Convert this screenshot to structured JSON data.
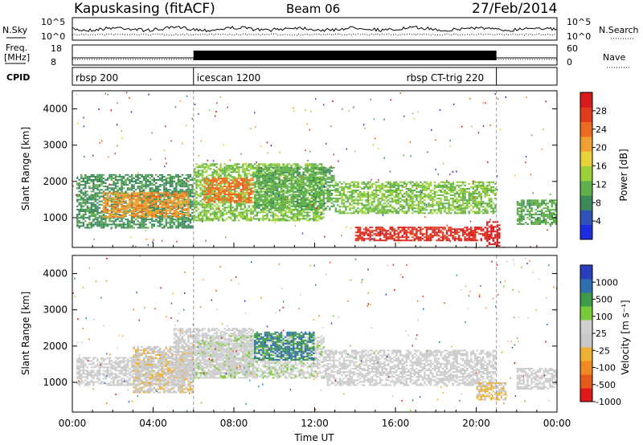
{
  "header": {
    "station": "Kapuskasing (fitACF)",
    "beam": "Beam 06",
    "date": "27/Feb/2014"
  },
  "strips": {
    "nsky_label": "N.Sky",
    "nsky_ticks": [
      "10^5",
      "10^0"
    ],
    "nsearch_label": "N.Search",
    "nsearch_ticks": [
      "10^5",
      "10^0"
    ],
    "freq_label_1": "Freq.",
    "freq_label_2": "[MHz]",
    "freq_ticks": [
      "18",
      "8"
    ],
    "nave_label": "Nave",
    "nave_ticks": [
      "60",
      "0"
    ],
    "cpid_label": "CPID",
    "cpid_segments": [
      {
        "label": "rbsp 200",
        "start_hour": 0,
        "end_hour": 6.0
      },
      {
        "label": "icescan 1200",
        "start_hour": 6.0,
        "end_hour": 21.0
      },
      {
        "label": "rbsp CT-trig 220",
        "start_hour": 21.0,
        "end_hour": 24
      }
    ]
  },
  "chart_data": [
    {
      "type": "heatmap",
      "name": "power",
      "ylabel": "Slant Range [km]",
      "yticks": [
        "4000",
        "3000",
        "2000",
        "1000"
      ],
      "ylim": [
        180,
        4500
      ],
      "xlim": [
        0,
        24
      ],
      "colorbar": {
        "label": "Power [dB]",
        "ticks": [
          "28",
          "24",
          "20",
          "16",
          "12",
          "8",
          "4"
        ],
        "range": [
          0,
          30
        ]
      },
      "colors": [
        "#1a2de0",
        "#2f52b8",
        "#3c8a5a",
        "#5fb04a",
        "#9bd23c",
        "#e8d23a",
        "#f0a030",
        "#ee6a20",
        "#e23a1c",
        "#d81a1a"
      ],
      "regions": [
        {
          "t0": 0.2,
          "t1": 6.0,
          "r0": 700,
          "r1": 2200,
          "value": 8
        },
        {
          "t0": 1.5,
          "t1": 5.8,
          "r0": 1000,
          "r1": 1700,
          "value": 20
        },
        {
          "t0": 6.0,
          "t1": 12.5,
          "r0": 900,
          "r1": 2500,
          "value": 12
        },
        {
          "t0": 6.5,
          "t1": 9.0,
          "r0": 1400,
          "r1": 2100,
          "value": 22
        },
        {
          "t0": 9.0,
          "t1": 13.0,
          "r0": 1200,
          "r1": 2400,
          "value": 10
        },
        {
          "t0": 13.0,
          "t1": 21.0,
          "r0": 1100,
          "r1": 2000,
          "value": 12
        },
        {
          "t0": 14.0,
          "t1": 20.5,
          "r0": 350,
          "r1": 750,
          "value": 27
        },
        {
          "t0": 20.5,
          "t1": 21.2,
          "r0": 200,
          "r1": 900,
          "value": 29
        },
        {
          "t0": 22.0,
          "t1": 24.0,
          "r0": 800,
          "r1": 1500,
          "value": 10
        }
      ]
    },
    {
      "type": "heatmap",
      "name": "velocity",
      "ylabel": "Slant Range [km]",
      "yticks": [
        "4000",
        "3000",
        "2000",
        "1000"
      ],
      "ylim": [
        180,
        4500
      ],
      "xlim": [
        0,
        24
      ],
      "xticks": [
        "00:00",
        "04:00",
        "08:00",
        "12:00",
        "16:00",
        "20:00",
        "00:00"
      ],
      "xlabel": "Time UT",
      "colorbar": {
        "label": "Velocity [m s⁻¹]",
        "ticks": [
          "1000",
          "500",
          "100",
          "25",
          "-25",
          "-100",
          "-500",
          "-1000"
        ],
        "range": [
          -1000,
          1000
        ]
      },
      "colors": [
        "#e01818",
        "#e85a1a",
        "#f08a20",
        "#f0b030",
        "#c8c8c8",
        "#cfcfcf",
        "#7acb3a",
        "#3e9a48",
        "#2f6fb0",
        "#2a3fc0"
      ],
      "regions": [
        {
          "t0": 0.2,
          "t1": 6.0,
          "r0": 900,
          "r1": 1700,
          "value": 0
        },
        {
          "t0": 3.0,
          "t1": 6.0,
          "r0": 700,
          "r1": 2000,
          "value": -150
        },
        {
          "t0": 5.0,
          "t1": 9.0,
          "r0": 1200,
          "r1": 2500,
          "value": 0
        },
        {
          "t0": 6.0,
          "t1": 12.5,
          "r0": 1100,
          "r1": 2300,
          "value": 120
        },
        {
          "t0": 9.0,
          "t1": 12.0,
          "r0": 1600,
          "r1": 2400,
          "value": 600
        },
        {
          "t0": 12.5,
          "t1": 21.0,
          "r0": 900,
          "r1": 1900,
          "value": 0
        },
        {
          "t0": 20.0,
          "t1": 21.5,
          "r0": 500,
          "r1": 1000,
          "value": -200
        },
        {
          "t0": 22.0,
          "t1": 24.0,
          "r0": 800,
          "r1": 1400,
          "value": 0
        }
      ]
    }
  ]
}
